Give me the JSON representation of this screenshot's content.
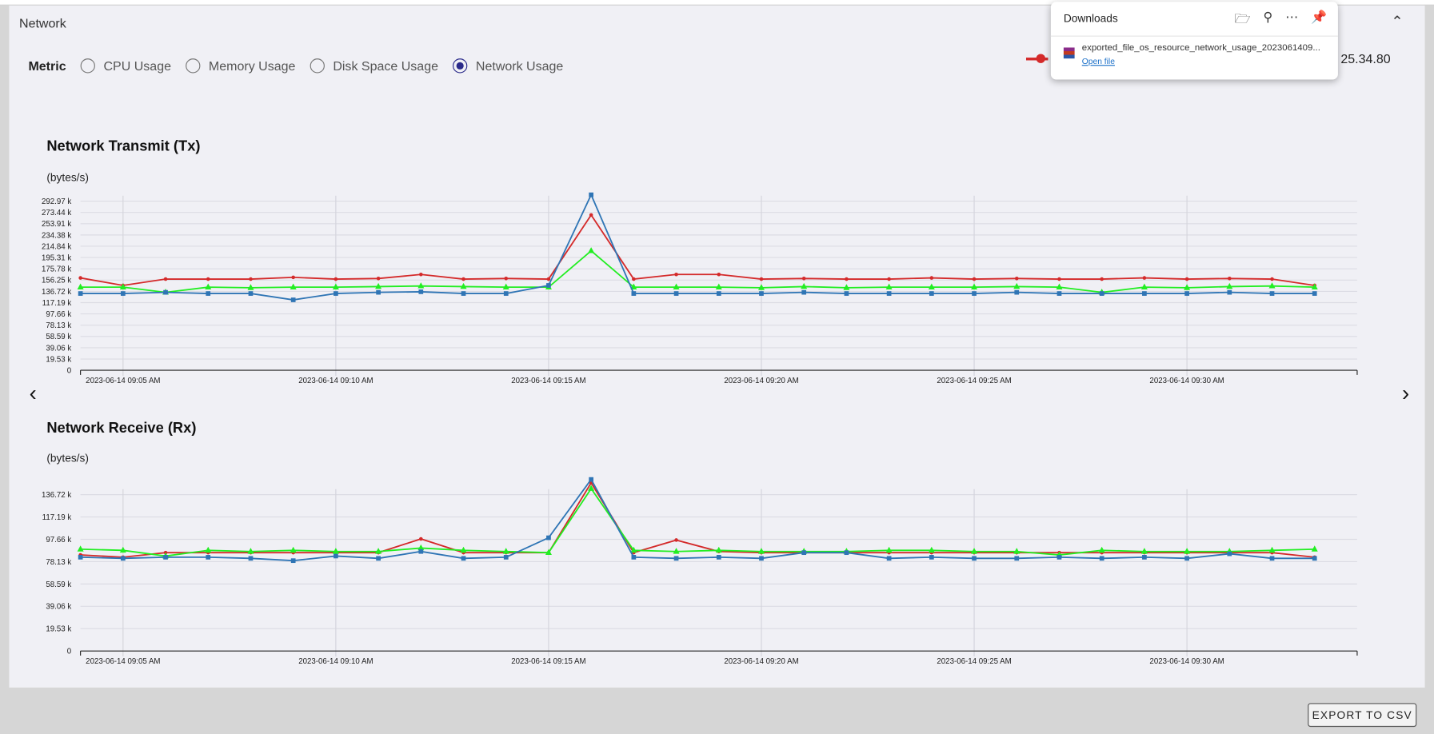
{
  "panel": {
    "title": "Network"
  },
  "metric": {
    "label": "Metric",
    "options": [
      {
        "label": "CPU Usage",
        "selected": false
      },
      {
        "label": "Memory Usage",
        "selected": false
      },
      {
        "label": "Disk Space Usage",
        "selected": false
      },
      {
        "label": "Network Usage",
        "selected": true
      }
    ]
  },
  "legend": {
    "partial_label": "25.34.80",
    "color": "#d42a2a"
  },
  "downloads": {
    "title": "Downloads",
    "file_name": "exported_file_os_resource_network_usage_2023061409...",
    "open_label": "Open file",
    "icons": [
      "folder-icon",
      "search-icon",
      "more-icon",
      "pin-icon"
    ]
  },
  "nav": {
    "prev": "‹",
    "next": "›"
  },
  "export_label": "EXPORT TO CSV",
  "chart_data": [
    {
      "type": "line",
      "title": "Network Transmit (Tx)",
      "ylabel": "(bytes/s)",
      "x_start": "2023-06-14 09:04 AM",
      "x_step_minutes": 1,
      "xlim_minutes": [
        0,
        30
      ],
      "x_ticks": [
        {
          "m": 1,
          "label": "2023-06-14 09:05 AM"
        },
        {
          "m": 6,
          "label": "2023-06-14 09:10 AM"
        },
        {
          "m": 11,
          "label": "2023-06-14 09:15 AM"
        },
        {
          "m": 16,
          "label": "2023-06-14 09:20 AM"
        },
        {
          "m": 21,
          "label": "2023-06-14 09:25 AM"
        },
        {
          "m": 26,
          "label": "2023-06-14 09:30 AM"
        }
      ],
      "ylim": [
        0,
        292.97
      ],
      "y_ticks": [
        "0",
        "19.53 k",
        "39.06 k",
        "58.59 k",
        "78.13 k",
        "97.66 k",
        "117.19 k",
        "136.72 k",
        "156.25 k",
        "175.78 k",
        "195.31 k",
        "214.84 k",
        "234.38 k",
        "253.91 k",
        "273.44 k",
        "292.97 k"
      ],
      "y_tick_values": [
        0,
        19.53,
        39.06,
        58.59,
        78.13,
        97.66,
        117.19,
        136.72,
        156.25,
        175.78,
        195.31,
        214.84,
        234.38,
        253.91,
        273.44,
        292.97
      ],
      "y_unit": "k bytes/s",
      "grid": true,
      "series": [
        {
          "color": "#d42a2a",
          "marker": "circle",
          "values": [
            160,
            147,
            158,
            158,
            158,
            161,
            158,
            159,
            166,
            158,
            159,
            158,
            269,
            158,
            166,
            166,
            158,
            159,
            158,
            158,
            160,
            158,
            159,
            158,
            158,
            160,
            158,
            159,
            158,
            147
          ]
        },
        {
          "color": "#22ee22",
          "marker": "triangle",
          "values": [
            144,
            144,
            135,
            144,
            143,
            144,
            144,
            145,
            146,
            145,
            144,
            144,
            207,
            144,
            144,
            144,
            143,
            145,
            143,
            144,
            144,
            144,
            145,
            144,
            135,
            144,
            143,
            145,
            146,
            144
          ]
        },
        {
          "color": "#2f75b5",
          "marker": "square",
          "values": [
            133,
            133,
            135,
            133,
            133,
            122,
            133,
            135,
            136,
            133,
            133,
            147,
            304,
            133,
            133,
            133,
            133,
            135,
            133,
            133,
            133,
            133,
            135,
            133,
            133,
            133,
            133,
            135,
            133,
            133
          ]
        }
      ]
    },
    {
      "type": "line",
      "title": "Network Receive (Rx)",
      "ylabel": "(bytes/s)",
      "x_start": "2023-06-14 09:04 AM",
      "x_step_minutes": 1,
      "xlim_minutes": [
        0,
        30
      ],
      "x_ticks": [
        {
          "m": 1,
          "label": "2023-06-14 09:05 AM"
        },
        {
          "m": 6,
          "label": "2023-06-14 09:10 AM"
        },
        {
          "m": 11,
          "label": "2023-06-14 09:15 AM"
        },
        {
          "m": 16,
          "label": "2023-06-14 09:20 AM"
        },
        {
          "m": 21,
          "label": "2023-06-14 09:25 AM"
        },
        {
          "m": 26,
          "label": "2023-06-14 09:30 AM"
        }
      ],
      "ylim": [
        0,
        136.72
      ],
      "y_ticks": [
        "0",
        "19.53 k",
        "39.06 k",
        "58.59 k",
        "78.13 k",
        "97.66 k",
        "117.19 k",
        "136.72 k"
      ],
      "y_tick_values": [
        0,
        19.53,
        39.06,
        58.59,
        78.13,
        97.66,
        117.19,
        136.72
      ],
      "y_unit": "k bytes/s",
      "grid": true,
      "series": [
        {
          "color": "#d42a2a",
          "marker": "circle",
          "values": [
            84,
            82,
            86,
            86,
            86,
            86,
            86,
            86,
            98,
            86,
            86,
            86,
            147,
            86,
            97,
            87,
            86,
            86,
            86,
            86,
            86,
            86,
            86,
            86,
            86,
            86,
            86,
            86,
            86,
            82
          ]
        },
        {
          "color": "#22ee22",
          "marker": "triangle",
          "values": [
            89,
            88,
            83,
            88,
            87,
            88,
            87,
            87,
            90,
            88,
            87,
            86,
            142,
            88,
            87,
            88,
            87,
            87,
            87,
            88,
            88,
            87,
            87,
            84,
            88,
            87,
            87,
            87,
            88,
            89
          ]
        },
        {
          "color": "#2f75b5",
          "marker": "square",
          "values": [
            82,
            81,
            82,
            82,
            81,
            79,
            83,
            81,
            87,
            81,
            82,
            99,
            150,
            82,
            81,
            82,
            81,
            86,
            86,
            81,
            82,
            81,
            81,
            82,
            81,
            82,
            81,
            85,
            81,
            81
          ]
        }
      ]
    }
  ]
}
